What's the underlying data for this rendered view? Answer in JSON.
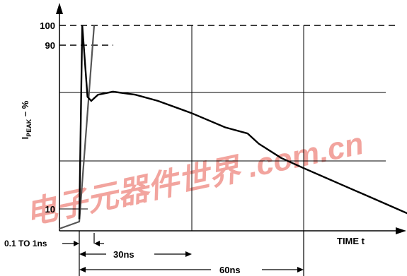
{
  "chart_data": {
    "type": "line",
    "title": "",
    "ylabel": {
      "main": "I",
      "sub": "PEAK",
      "suffix": " – %"
    },
    "xlabel": "TIME t",
    "y_ticks": [
      "100",
      "90",
      "10"
    ],
    "annotations": {
      "rise_time": "0.1 TO 1ns",
      "width_30": "30ns",
      "width_60": "60ns"
    },
    "watermark": "电子元器件世界 .com.cn",
    "series": [
      {
        "values_description_free": true,
        "points": [
          {
            "t_ns": -3,
            "percent": 2
          },
          {
            "t_ns": 0,
            "percent": 5
          },
          {
            "t_ns": 0.8,
            "percent": 100
          },
          {
            "t_ns": 2.2,
            "percent": 65
          },
          {
            "t_ns": 3.2,
            "percent": 63
          },
          {
            "t_ns": 5,
            "percent": 66
          },
          {
            "t_ns": 9,
            "percent": 67.5
          },
          {
            "t_ns": 15,
            "percent": 66
          },
          {
            "t_ns": 21,
            "percent": 63
          },
          {
            "t_ns": 30,
            "percent": 57
          },
          {
            "t_ns": 39,
            "percent": 50
          },
          {
            "t_ns": 45,
            "percent": 47
          },
          {
            "t_ns": 48,
            "percent": 42
          },
          {
            "t_ns": 54,
            "percent": 35
          },
          {
            "t_ns": 60,
            "percent": 30
          },
          {
            "t_ns": 70,
            "percent": 22
          },
          {
            "t_ns": 80,
            "percent": 14
          },
          {
            "t_ns": 90,
            "percent": 6
          },
          {
            "t_ns": 94,
            "percent": 2
          }
        ]
      }
    ],
    "reference_levels_percent": [
      100,
      90,
      67,
      33,
      10
    ],
    "reference_times_ns": [
      0,
      30,
      60
    ]
  }
}
